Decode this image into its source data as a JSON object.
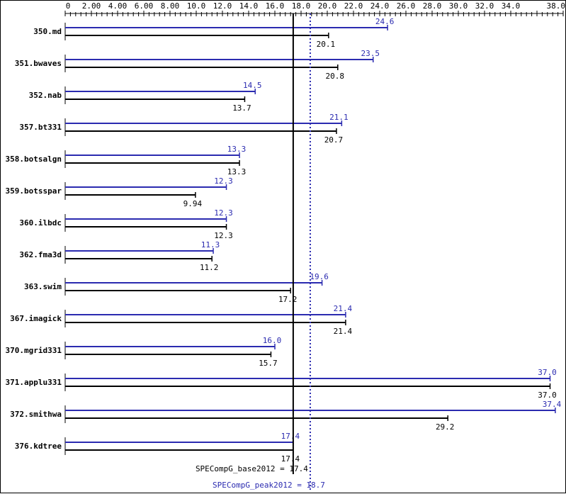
{
  "chart_data": {
    "type": "bar",
    "orientation": "horizontal",
    "xlim": [
      0,
      38.0
    ],
    "tick_labels": [
      "0",
      "2.00",
      "4.00",
      "6.00",
      "8.00",
      "10.0",
      "12.0",
      "14.0",
      "16.0",
      "18.0",
      "20.0",
      "22.0",
      "24.0",
      "26.0",
      "28.0",
      "30.0",
      "32.0",
      "34.0",
      "38.0"
    ],
    "tick_values": [
      0,
      2,
      4,
      6,
      8,
      10,
      12,
      14,
      16,
      18,
      20,
      22,
      24,
      26,
      28,
      30,
      32,
      34,
      38
    ],
    "categories": [
      "350.md",
      "351.bwaves",
      "352.nab",
      "357.bt331",
      "358.botsalgn",
      "359.botsspar",
      "360.ilbdc",
      "362.fma3d",
      "363.swim",
      "367.imagick",
      "370.mgrid331",
      "371.applu331",
      "372.smithwa",
      "376.kdtree"
    ],
    "series": [
      {
        "key": "peak",
        "values": [
          24.6,
          23.5,
          14.5,
          21.1,
          13.3,
          12.3,
          12.3,
          11.3,
          19.6,
          21.4,
          16.0,
          37.0,
          37.4,
          17.4
        ],
        "labels": [
          "24.6",
          "23.5",
          "14.5",
          "21.1",
          "13.3",
          "12.3",
          "12.3",
          "11.3",
          "19.6",
          "21.4",
          "16.0",
          "37.0",
          "37.4",
          "17.4"
        ],
        "color": "#2b2bb0"
      },
      {
        "key": "base",
        "values": [
          20.1,
          20.8,
          13.7,
          20.7,
          13.3,
          9.94,
          12.3,
          11.2,
          17.2,
          21.4,
          15.7,
          37.0,
          29.2,
          17.4
        ],
        "labels": [
          "20.1",
          "20.8",
          "13.7",
          "20.7",
          "13.3",
          "9.94",
          "12.3",
          "11.2",
          "17.2",
          "21.4",
          "15.7",
          "37.0",
          "29.2",
          "17.4"
        ],
        "color": "#000000"
      }
    ],
    "reference_lines": [
      {
        "label": "SPECompG_base2012 = 17.4",
        "value": 17.4,
        "color": "#000000",
        "style": "solid"
      },
      {
        "label": "SPECompG_peak2012 = 18.7",
        "value": 18.7,
        "color": "#2b2bb0",
        "style": "dotted"
      }
    ]
  }
}
